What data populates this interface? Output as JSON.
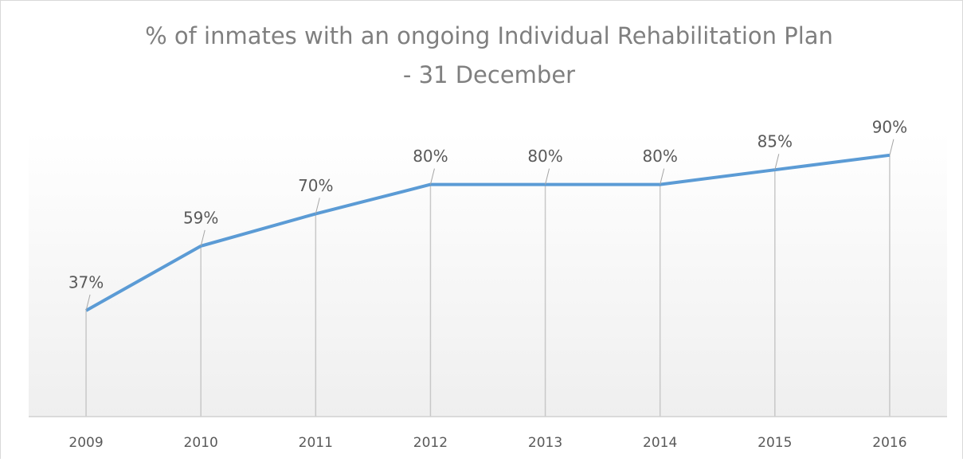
{
  "chart_data": {
    "type": "line",
    "title": [
      "% of inmates with an ongoing Individual Rehabilitation Plan",
      "- 31 December"
    ],
    "categories": [
      "2009",
      "2010",
      "2011",
      "2012",
      "2013",
      "2014",
      "2015",
      "2016"
    ],
    "series": [
      {
        "color": "#5b9bd5",
        "values": [
          37,
          59,
          70,
          80,
          80,
          80,
          85,
          90
        ],
        "value_labels": [
          "37%",
          "59%",
          "70%",
          "80%",
          "80%",
          "80%",
          "85%",
          "90%"
        ]
      }
    ],
    "ylim": [
      0,
      100
    ],
    "drop_lines": true
  }
}
